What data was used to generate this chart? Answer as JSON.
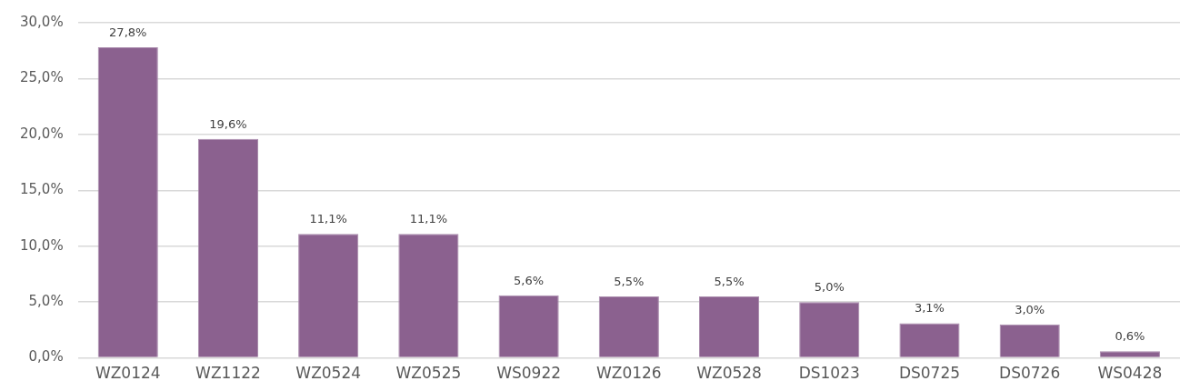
{
  "chart_data": {
    "type": "bar",
    "categories": [
      "WZ0124",
      "WZ1122",
      "WZ0524",
      "WZ0525",
      "WS0922",
      "WZ0126",
      "WZ0528",
      "DS1023",
      "DS0725",
      "DS0726",
      "WS0428"
    ],
    "values": [
      27.8,
      19.6,
      11.1,
      11.1,
      5.6,
      5.5,
      5.5,
      5.0,
      3.1,
      3.0,
      0.6
    ],
    "value_labels": [
      "27,8%",
      "19,6%",
      "11,1%",
      "11,1%",
      "5,6%",
      "5,5%",
      "5,5%",
      "5,0%",
      "3,1%",
      "3,0%",
      "0,6%"
    ],
    "color": "#8b618f",
    "ylim": [
      0,
      30
    ],
    "yticks": [
      {
        "value": 0,
        "label": "0,0%"
      },
      {
        "value": 5,
        "label": "5,0%"
      },
      {
        "value": 10,
        "label": "10,0%"
      },
      {
        "value": 15,
        "label": "15,0%"
      },
      {
        "value": 20,
        "label": "20,0%"
      },
      {
        "value": 25,
        "label": "25,0%"
      },
      {
        "value": 30,
        "label": "30,0%"
      }
    ],
    "grid": "y",
    "legend": false
  }
}
